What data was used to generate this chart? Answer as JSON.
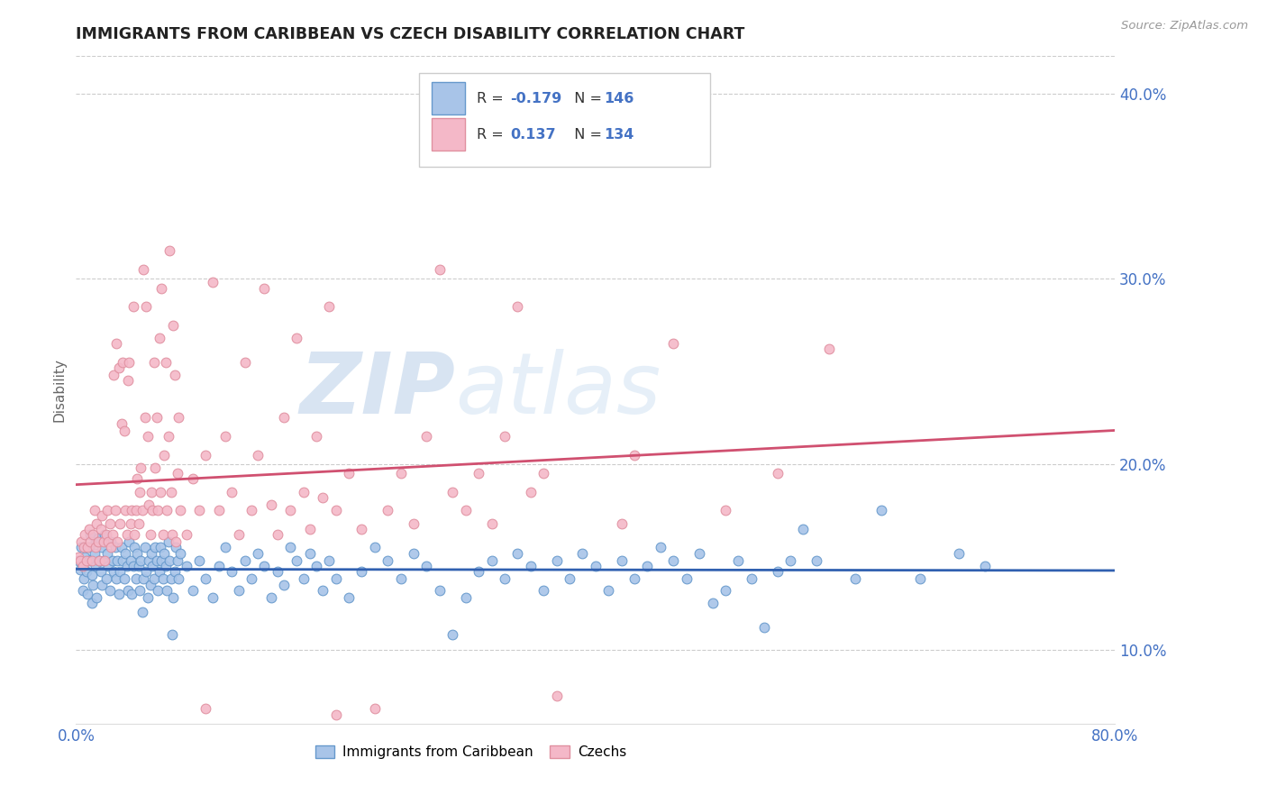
{
  "title": "IMMIGRANTS FROM CARIBBEAN VS CZECH DISABILITY CORRELATION CHART",
  "source_text": "Source: ZipAtlas.com",
  "ylabel": "Disability",
  "xlim": [
    0.0,
    0.8
  ],
  "ylim": [
    0.06,
    0.42
  ],
  "xticks": [
    0.0,
    0.1,
    0.2,
    0.3,
    0.4,
    0.5,
    0.6,
    0.7,
    0.8
  ],
  "xticklabels": [
    "0.0%",
    "",
    "",
    "",
    "",
    "",
    "",
    "",
    "80.0%"
  ],
  "yticks": [
    0.1,
    0.2,
    0.3,
    0.4
  ],
  "yticklabels": [
    "10.0%",
    "20.0%",
    "30.0%",
    "40.0%"
  ],
  "legend_r_blue": "-0.179",
  "legend_n_blue": "146",
  "legend_r_pink": "0.137",
  "legend_n_pink": "134",
  "blue_scatter_color": "#a8c4e8",
  "blue_edge_color": "#6699cc",
  "pink_scatter_color": "#f4b8c8",
  "pink_edge_color": "#e090a0",
  "blue_line_color": "#3060b0",
  "pink_line_color": "#d05070",
  "legend_label_blue": "Immigrants from Caribbean",
  "legend_label_pink": "Czechs",
  "title_color": "#222222",
  "axis_label_color": "#666666",
  "tick_color": "#4472c4",
  "grid_color": "#cccccc",
  "blue_scatter": [
    [
      0.002,
      0.148
    ],
    [
      0.003,
      0.143
    ],
    [
      0.004,
      0.155
    ],
    [
      0.005,
      0.132
    ],
    [
      0.005,
      0.145
    ],
    [
      0.006,
      0.138
    ],
    [
      0.007,
      0.15
    ],
    [
      0.008,
      0.142
    ],
    [
      0.009,
      0.13
    ],
    [
      0.01,
      0.148
    ],
    [
      0.01,
      0.155
    ],
    [
      0.011,
      0.162
    ],
    [
      0.012,
      0.125
    ],
    [
      0.012,
      0.14
    ],
    [
      0.013,
      0.135
    ],
    [
      0.014,
      0.152
    ],
    [
      0.015,
      0.145
    ],
    [
      0.015,
      0.158
    ],
    [
      0.016,
      0.128
    ],
    [
      0.017,
      0.16
    ],
    [
      0.018,
      0.148
    ],
    [
      0.019,
      0.142
    ],
    [
      0.02,
      0.155
    ],
    [
      0.02,
      0.135
    ],
    [
      0.021,
      0.148
    ],
    [
      0.022,
      0.162
    ],
    [
      0.023,
      0.138
    ],
    [
      0.024,
      0.152
    ],
    [
      0.025,
      0.145
    ],
    [
      0.026,
      0.132
    ],
    [
      0.027,
      0.158
    ],
    [
      0.028,
      0.148
    ],
    [
      0.029,
      0.142
    ],
    [
      0.03,
      0.155
    ],
    [
      0.031,
      0.138
    ],
    [
      0.032,
      0.148
    ],
    [
      0.033,
      0.13
    ],
    [
      0.034,
      0.142
    ],
    [
      0.035,
      0.155
    ],
    [
      0.036,
      0.148
    ],
    [
      0.037,
      0.138
    ],
    [
      0.038,
      0.152
    ],
    [
      0.039,
      0.145
    ],
    [
      0.04,
      0.132
    ],
    [
      0.041,
      0.158
    ],
    [
      0.042,
      0.148
    ],
    [
      0.043,
      0.13
    ],
    [
      0.044,
      0.145
    ],
    [
      0.045,
      0.155
    ],
    [
      0.046,
      0.138
    ],
    [
      0.047,
      0.152
    ],
    [
      0.048,
      0.145
    ],
    [
      0.049,
      0.132
    ],
    [
      0.05,
      0.148
    ],
    [
      0.051,
      0.12
    ],
    [
      0.052,
      0.138
    ],
    [
      0.053,
      0.155
    ],
    [
      0.054,
      0.142
    ],
    [
      0.055,
      0.128
    ],
    [
      0.056,
      0.148
    ],
    [
      0.057,
      0.135
    ],
    [
      0.058,
      0.152
    ],
    [
      0.059,
      0.145
    ],
    [
      0.06,
      0.138
    ],
    [
      0.061,
      0.155
    ],
    [
      0.062,
      0.148
    ],
    [
      0.063,
      0.132
    ],
    [
      0.064,
      0.142
    ],
    [
      0.065,
      0.155
    ],
    [
      0.066,
      0.148
    ],
    [
      0.067,
      0.138
    ],
    [
      0.068,
      0.152
    ],
    [
      0.069,
      0.145
    ],
    [
      0.07,
      0.132
    ],
    [
      0.071,
      0.158
    ],
    [
      0.072,
      0.148
    ],
    [
      0.073,
      0.138
    ],
    [
      0.074,
      0.108
    ],
    [
      0.075,
      0.128
    ],
    [
      0.076,
      0.142
    ],
    [
      0.077,
      0.155
    ],
    [
      0.078,
      0.148
    ],
    [
      0.079,
      0.138
    ],
    [
      0.08,
      0.152
    ],
    [
      0.085,
      0.145
    ],
    [
      0.09,
      0.132
    ],
    [
      0.095,
      0.148
    ],
    [
      0.1,
      0.138
    ],
    [
      0.105,
      0.128
    ],
    [
      0.11,
      0.145
    ],
    [
      0.115,
      0.155
    ],
    [
      0.12,
      0.142
    ],
    [
      0.125,
      0.132
    ],
    [
      0.13,
      0.148
    ],
    [
      0.135,
      0.138
    ],
    [
      0.14,
      0.152
    ],
    [
      0.145,
      0.145
    ],
    [
      0.15,
      0.128
    ],
    [
      0.155,
      0.142
    ],
    [
      0.16,
      0.135
    ],
    [
      0.165,
      0.155
    ],
    [
      0.17,
      0.148
    ],
    [
      0.175,
      0.138
    ],
    [
      0.18,
      0.152
    ],
    [
      0.185,
      0.145
    ],
    [
      0.19,
      0.132
    ],
    [
      0.195,
      0.148
    ],
    [
      0.2,
      0.138
    ],
    [
      0.21,
      0.128
    ],
    [
      0.22,
      0.142
    ],
    [
      0.23,
      0.155
    ],
    [
      0.24,
      0.148
    ],
    [
      0.25,
      0.138
    ],
    [
      0.26,
      0.152
    ],
    [
      0.27,
      0.145
    ],
    [
      0.28,
      0.132
    ],
    [
      0.29,
      0.108
    ],
    [
      0.3,
      0.128
    ],
    [
      0.31,
      0.142
    ],
    [
      0.32,
      0.148
    ],
    [
      0.33,
      0.138
    ],
    [
      0.34,
      0.152
    ],
    [
      0.35,
      0.145
    ],
    [
      0.36,
      0.132
    ],
    [
      0.37,
      0.148
    ],
    [
      0.38,
      0.138
    ],
    [
      0.39,
      0.152
    ],
    [
      0.4,
      0.145
    ],
    [
      0.41,
      0.132
    ],
    [
      0.42,
      0.148
    ],
    [
      0.43,
      0.138
    ],
    [
      0.44,
      0.145
    ],
    [
      0.45,
      0.155
    ],
    [
      0.46,
      0.148
    ],
    [
      0.47,
      0.138
    ],
    [
      0.48,
      0.152
    ],
    [
      0.49,
      0.125
    ],
    [
      0.5,
      0.132
    ],
    [
      0.51,
      0.148
    ],
    [
      0.52,
      0.138
    ],
    [
      0.53,
      0.112
    ],
    [
      0.54,
      0.142
    ],
    [
      0.55,
      0.148
    ],
    [
      0.56,
      0.165
    ],
    [
      0.57,
      0.148
    ],
    [
      0.6,
      0.138
    ],
    [
      0.62,
      0.175
    ],
    [
      0.65,
      0.138
    ],
    [
      0.68,
      0.152
    ],
    [
      0.7,
      0.145
    ]
  ],
  "pink_scatter": [
    [
      0.002,
      0.15
    ],
    [
      0.003,
      0.148
    ],
    [
      0.004,
      0.158
    ],
    [
      0.005,
      0.145
    ],
    [
      0.006,
      0.155
    ],
    [
      0.007,
      0.162
    ],
    [
      0.008,
      0.148
    ],
    [
      0.009,
      0.155
    ],
    [
      0.01,
      0.165
    ],
    [
      0.011,
      0.158
    ],
    [
      0.012,
      0.148
    ],
    [
      0.013,
      0.162
    ],
    [
      0.014,
      0.175
    ],
    [
      0.015,
      0.155
    ],
    [
      0.016,
      0.168
    ],
    [
      0.017,
      0.158
    ],
    [
      0.018,
      0.148
    ],
    [
      0.019,
      0.165
    ],
    [
      0.02,
      0.172
    ],
    [
      0.021,
      0.158
    ],
    [
      0.022,
      0.148
    ],
    [
      0.023,
      0.162
    ],
    [
      0.024,
      0.175
    ],
    [
      0.025,
      0.158
    ],
    [
      0.026,
      0.168
    ],
    [
      0.027,
      0.155
    ],
    [
      0.028,
      0.162
    ],
    [
      0.029,
      0.248
    ],
    [
      0.03,
      0.175
    ],
    [
      0.031,
      0.265
    ],
    [
      0.032,
      0.158
    ],
    [
      0.033,
      0.252
    ],
    [
      0.034,
      0.168
    ],
    [
      0.035,
      0.222
    ],
    [
      0.036,
      0.255
    ],
    [
      0.037,
      0.218
    ],
    [
      0.038,
      0.175
    ],
    [
      0.039,
      0.162
    ],
    [
      0.04,
      0.245
    ],
    [
      0.041,
      0.255
    ],
    [
      0.042,
      0.168
    ],
    [
      0.043,
      0.175
    ],
    [
      0.044,
      0.285
    ],
    [
      0.045,
      0.162
    ],
    [
      0.046,
      0.175
    ],
    [
      0.047,
      0.192
    ],
    [
      0.048,
      0.168
    ],
    [
      0.049,
      0.185
    ],
    [
      0.05,
      0.198
    ],
    [
      0.051,
      0.175
    ],
    [
      0.052,
      0.305
    ],
    [
      0.053,
      0.225
    ],
    [
      0.054,
      0.285
    ],
    [
      0.055,
      0.215
    ],
    [
      0.056,
      0.178
    ],
    [
      0.057,
      0.162
    ],
    [
      0.058,
      0.185
    ],
    [
      0.059,
      0.175
    ],
    [
      0.06,
      0.255
    ],
    [
      0.061,
      0.198
    ],
    [
      0.062,
      0.225
    ],
    [
      0.063,
      0.175
    ],
    [
      0.064,
      0.268
    ],
    [
      0.065,
      0.185
    ],
    [
      0.066,
      0.295
    ],
    [
      0.067,
      0.162
    ],
    [
      0.068,
      0.205
    ],
    [
      0.069,
      0.255
    ],
    [
      0.07,
      0.175
    ],
    [
      0.071,
      0.215
    ],
    [
      0.072,
      0.315
    ],
    [
      0.073,
      0.185
    ],
    [
      0.074,
      0.162
    ],
    [
      0.075,
      0.275
    ],
    [
      0.076,
      0.248
    ],
    [
      0.077,
      0.158
    ],
    [
      0.078,
      0.195
    ],
    [
      0.079,
      0.225
    ],
    [
      0.08,
      0.175
    ],
    [
      0.085,
      0.162
    ],
    [
      0.09,
      0.192
    ],
    [
      0.095,
      0.175
    ],
    [
      0.1,
      0.205
    ],
    [
      0.105,
      0.298
    ],
    [
      0.11,
      0.175
    ],
    [
      0.115,
      0.215
    ],
    [
      0.12,
      0.185
    ],
    [
      0.125,
      0.162
    ],
    [
      0.13,
      0.255
    ],
    [
      0.135,
      0.175
    ],
    [
      0.14,
      0.205
    ],
    [
      0.145,
      0.295
    ],
    [
      0.15,
      0.178
    ],
    [
      0.155,
      0.162
    ],
    [
      0.16,
      0.225
    ],
    [
      0.165,
      0.175
    ],
    [
      0.17,
      0.268
    ],
    [
      0.175,
      0.185
    ],
    [
      0.18,
      0.165
    ],
    [
      0.185,
      0.215
    ],
    [
      0.19,
      0.182
    ],
    [
      0.195,
      0.285
    ],
    [
      0.2,
      0.175
    ],
    [
      0.21,
      0.195
    ],
    [
      0.22,
      0.165
    ],
    [
      0.23,
      0.068
    ],
    [
      0.24,
      0.175
    ],
    [
      0.25,
      0.195
    ],
    [
      0.26,
      0.168
    ],
    [
      0.27,
      0.215
    ],
    [
      0.28,
      0.305
    ],
    [
      0.29,
      0.185
    ],
    [
      0.3,
      0.175
    ],
    [
      0.31,
      0.195
    ],
    [
      0.32,
      0.168
    ],
    [
      0.33,
      0.215
    ],
    [
      0.34,
      0.285
    ],
    [
      0.35,
      0.185
    ],
    [
      0.36,
      0.195
    ],
    [
      0.37,
      0.075
    ],
    [
      0.42,
      0.168
    ],
    [
      0.46,
      0.265
    ],
    [
      0.5,
      0.175
    ],
    [
      0.54,
      0.195
    ],
    [
      0.58,
      0.262
    ],
    [
      0.43,
      0.205
    ],
    [
      0.1,
      0.068
    ],
    [
      0.2,
      0.065
    ]
  ]
}
